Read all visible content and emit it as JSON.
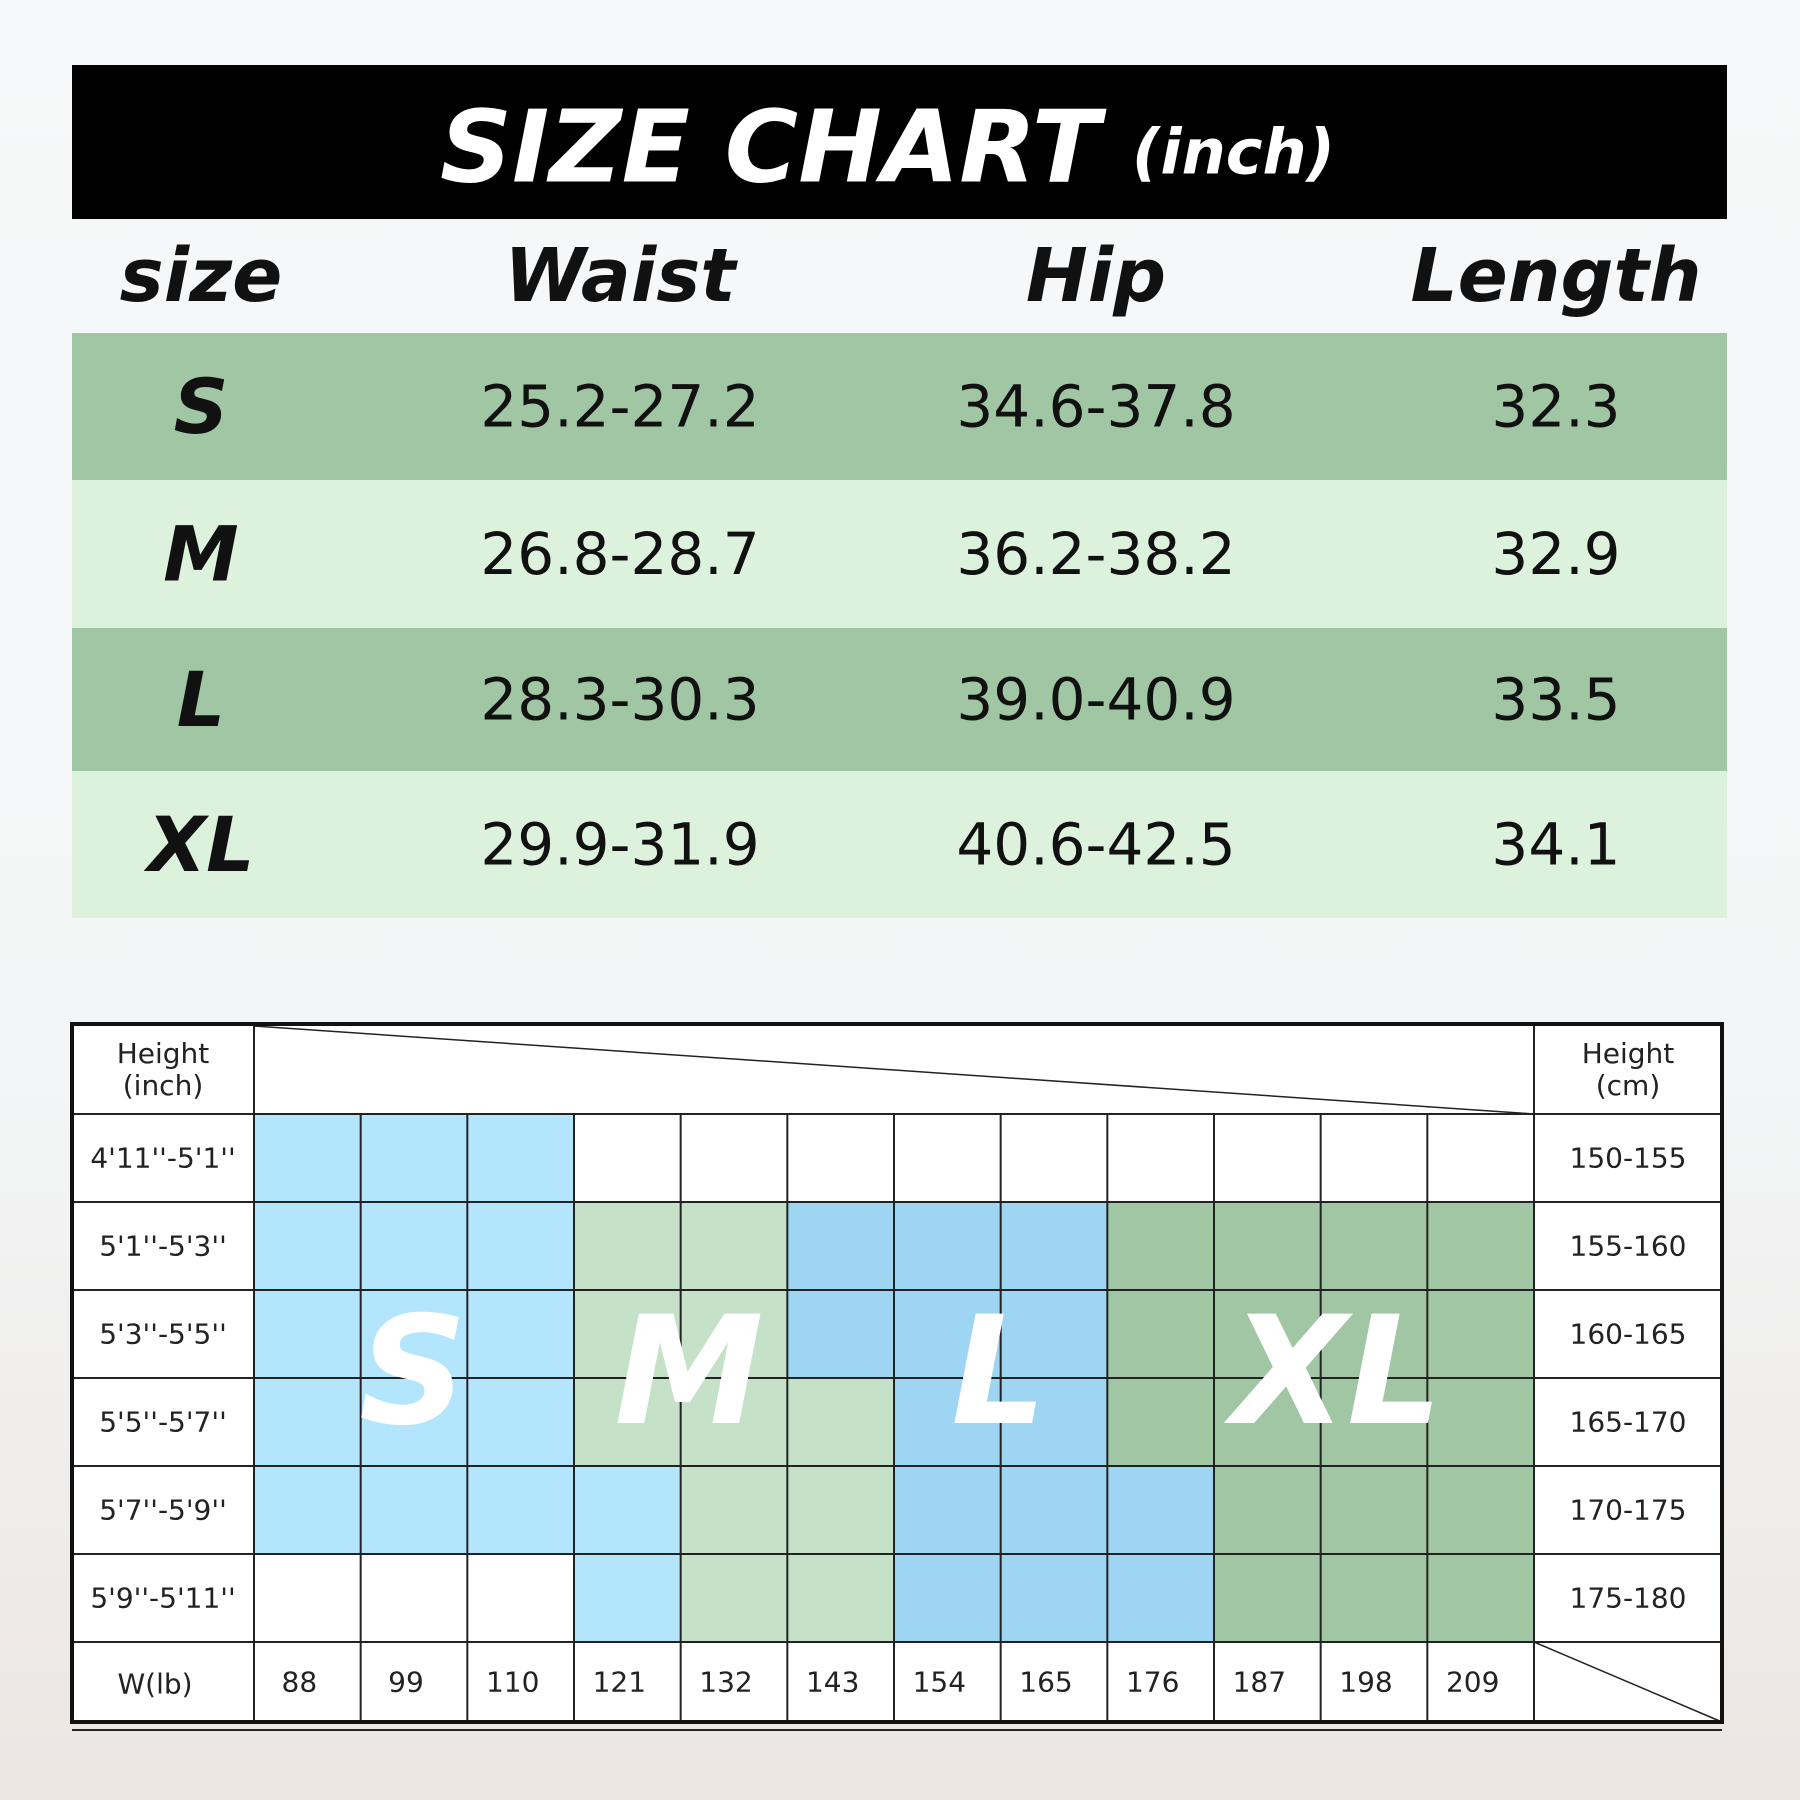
{
  "header": {
    "title": "SIZE CHART",
    "unit": "(inch)"
  },
  "table": {
    "columns": [
      "size",
      "Waist",
      "Hip",
      "Length"
    ],
    "rows": [
      [
        "S",
        "25.2-27.2",
        "34.6-37.8",
        "32.3"
      ],
      [
        "M",
        "26.8-28.7",
        "36.2-38.2",
        "32.9"
      ],
      [
        "L",
        "28.3-30.3",
        "39.0-40.9",
        "33.5"
      ],
      [
        "XL",
        "29.9-31.9",
        "40.6-42.5",
        "34.1"
      ]
    ],
    "row_colors": [
      "#a0c6a3",
      "#dcf2dd",
      "#a0c6a3",
      "#dcf2dd"
    ]
  },
  "fit_grid": {
    "left_header": "Height (inch)",
    "right_header": "Height (cm)",
    "heights_inch": [
      "4'11''-5'1''",
      "5'1''-5'3''",
      "5'3''-5'5''",
      "5'5''-5'7''",
      "5'7''-5'9''",
      "5'9''-5'11''"
    ],
    "heights_cm": [
      "150-155",
      "155-160",
      "160-165",
      "165-170",
      "170-175",
      "175-180"
    ],
    "weight_label": "W(lb)",
    "weights": [
      "88",
      "99",
      "110",
      "121",
      "132",
      "143",
      "154",
      "165",
      "176",
      "187",
      "198",
      "209"
    ],
    "size_labels": [
      "S",
      "M",
      "L",
      "XL"
    ],
    "cells": [
      [
        "#b3e5fc",
        "#b3e5fc",
        "#b3e5fc",
        "#ffffff",
        "#ffffff",
        "#ffffff",
        "#ffffff",
        "#ffffff",
        "#ffffff",
        "#ffffff",
        "#ffffff",
        "#ffffff"
      ],
      [
        "#b3e5fc",
        "#b3e5fc",
        "#b3e5fc",
        "#c5e1c8",
        "#c5e1c8",
        "#9ed5f2",
        "#9ed5f2",
        "#9ed5f2",
        "#a0c6a3",
        "#a0c6a3",
        "#a0c6a3",
        "#a0c6a3"
      ],
      [
        "#b3e5fc",
        "#b3e5fc",
        "#b3e5fc",
        "#c5e1c8",
        "#c5e1c8",
        "#9ed5f2",
        "#9ed5f2",
        "#9ed5f2",
        "#a0c6a3",
        "#a0c6a3",
        "#a0c6a3",
        "#a0c6a3"
      ],
      [
        "#b3e5fc",
        "#b3e5fc",
        "#b3e5fc",
        "#c5e1c8",
        "#c5e1c8",
        "#c5e1c8",
        "#9ed5f2",
        "#9ed5f2",
        "#a0c6a3",
        "#a0c6a3",
        "#a0c6a3",
        "#a0c6a3"
      ],
      [
        "#b3e5fc",
        "#b3e5fc",
        "#b3e5fc",
        "#b3e5fc",
        "#c5e1c8",
        "#c5e1c8",
        "#9ed5f2",
        "#9ed5f2",
        "#9ed5f2",
        "#a0c6a3",
        "#a0c6a3",
        "#a0c6a3"
      ],
      [
        "#ffffff",
        "#ffffff",
        "#ffffff",
        "#b3e5fc",
        "#c5e1c8",
        "#c5e1c8",
        "#9ed5f2",
        "#9ed5f2",
        "#9ed5f2",
        "#a0c6a3",
        "#a0c6a3",
        "#a0c6a3"
      ]
    ]
  }
}
